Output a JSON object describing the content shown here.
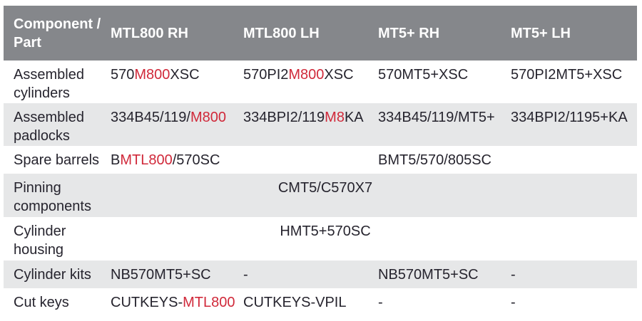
{
  "colors": {
    "header_bg": "#85878b",
    "header_text": "#ffffff",
    "stripe_bg": "#e6e7e8",
    "body_text": "#26242e",
    "accent_red": "#d0293a"
  },
  "header": {
    "columns": [
      "Component / Part",
      "MTL800 RH",
      "MTL800 LH",
      "MT5+ RH",
      "MT5+ LH"
    ]
  },
  "rows": [
    {
      "label": "Assembled cylinders",
      "cells": [
        [
          {
            "t": "570"
          },
          {
            "t": "M800",
            "red": true
          },
          {
            "t": "XSC"
          }
        ],
        [
          {
            "t": "570PI2"
          },
          {
            "t": "M800",
            "red": true
          },
          {
            "t": "XSC"
          }
        ],
        [
          {
            "t": "570MT5+XSC"
          }
        ],
        [
          {
            "t": "570PI2MT5+XSC"
          }
        ]
      ]
    },
    {
      "label": "Assembled padlocks",
      "cells": [
        [
          {
            "t": "334B45/119/"
          },
          {
            "t": "M800",
            "red": true
          }
        ],
        [
          {
            "t": "334BPI2/119"
          },
          {
            "t": "M8",
            "red": true
          },
          {
            "t": "KA"
          }
        ],
        [
          {
            "t": "334B45/119/MT5+"
          }
        ],
        [
          {
            "t": "334BPI2/1195+KA"
          }
        ]
      ]
    },
    {
      "label": "Spare barrels",
      "cells": [
        [
          {
            "t": "B"
          },
          {
            "t": "MTL800",
            "red": true
          },
          {
            "t": "/570SC"
          }
        ],
        [],
        [
          {
            "t": "BMT5/570/805SC"
          }
        ],
        []
      ]
    },
    {
      "label": "Pinning components",
      "span_value": "CMT5/C570X7"
    },
    {
      "label": "Cylinder housing",
      "span_value": "HMT5+570SC"
    },
    {
      "label": "Cylinder kits",
      "cells": [
        [
          {
            "t": "NB570MT5+SC"
          }
        ],
        [
          {
            "t": "-"
          }
        ],
        [
          {
            "t": "NB570MT5+SC"
          }
        ],
        [
          {
            "t": "-"
          }
        ]
      ]
    },
    {
      "label": "Cut keys",
      "cells": [
        [
          {
            "t": "CUTKEYS-"
          },
          {
            "t": "MTL800",
            "red": true
          }
        ],
        [
          {
            "t": "CUTKEYS-VPIL"
          }
        ],
        [
          {
            "t": "-"
          }
        ],
        [
          {
            "t": "-"
          }
        ]
      ]
    }
  ]
}
